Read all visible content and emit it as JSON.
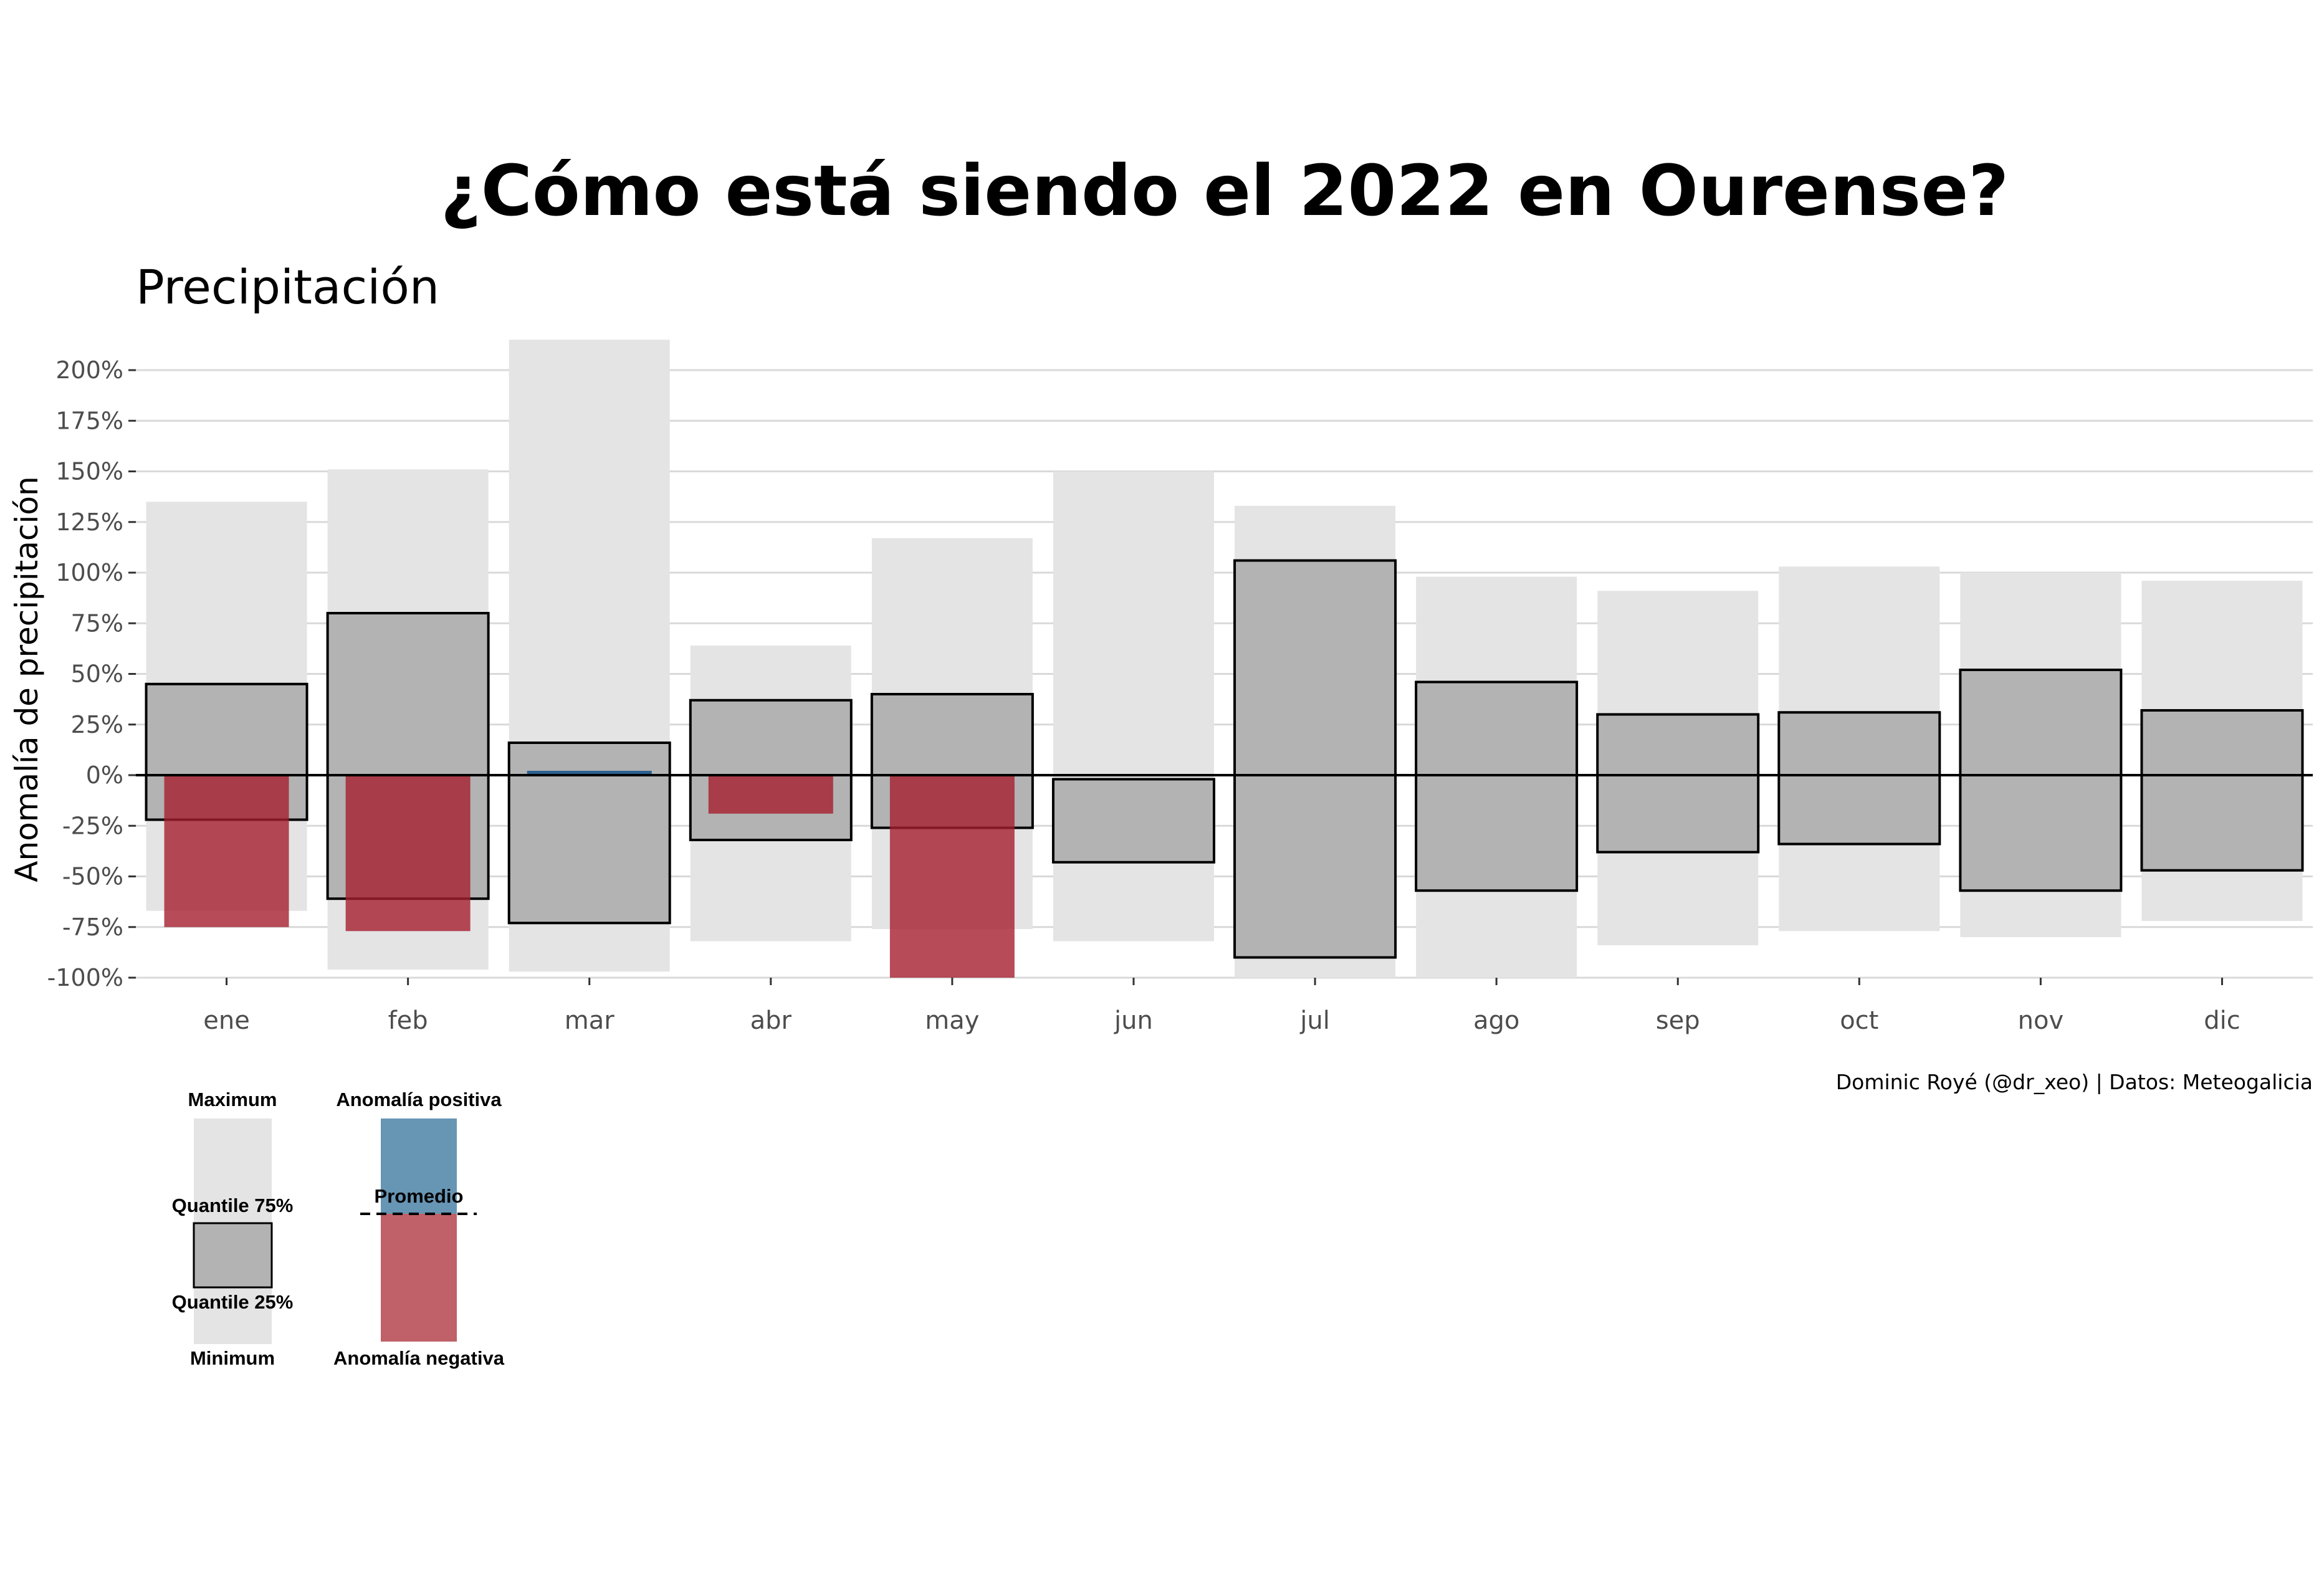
{
  "chart_data": {
    "type": "bar",
    "title": "¿Cómo está siendo el 2022 en Ourense?",
    "subtitle": "Precipitación",
    "ylabel": "Anomalía de precipitación",
    "caption": "Dominic Royé (@dr_xeo) | Datos: Meteogalicia",
    "ylim": [
      -100,
      215
    ],
    "yticks": [
      200,
      175,
      150,
      125,
      100,
      75,
      50,
      25,
      0,
      -25,
      -50,
      -75,
      -100
    ],
    "ytick_labels": [
      "200%",
      "175%",
      "150%",
      "125%",
      "100%",
      "75%",
      "50%",
      "25%",
      "0%",
      "-25%",
      "-50%",
      "-75%",
      "-100%"
    ],
    "categories": [
      "ene",
      "feb",
      "mar",
      "abr",
      "may",
      "jun",
      "jul",
      "ago",
      "sep",
      "oct",
      "nov",
      "dic"
    ],
    "min": [
      -67,
      -96,
      -97,
      -82,
      -76,
      -82,
      -100,
      -100,
      -84,
      -77,
      -80,
      -72
    ],
    "max": [
      135,
      151,
      215,
      64,
      117,
      150,
      133,
      98,
      91,
      103,
      100,
      96
    ],
    "q25": [
      -22,
      -61,
      -73,
      -32,
      -26,
      -43,
      -90,
      -57,
      -38,
      -34,
      -57,
      -47
    ],
    "q75": [
      45,
      80,
      16,
      37,
      40,
      -2,
      106,
      46,
      30,
      31,
      52,
      32
    ],
    "anomaly": [
      -75,
      -77,
      2,
      -19,
      -100,
      null,
      null,
      null,
      null,
      null,
      null,
      null
    ],
    "grid": true,
    "legend_position": "bottom-left"
  },
  "legend": {
    "maximum": "Maximum",
    "q75": "Quantile 75%",
    "q25": "Quantile 25%",
    "minimum": "Minimum",
    "positive": "Anomalía positiva",
    "average": "Promedio",
    "negative": "Anomalía negativa"
  },
  "colors": {
    "range_fill": "#e4e4e4",
    "iqr_fill": "#b3b3b3",
    "positive": "#2c6190",
    "negative": "#a51e2d",
    "positive_legend": "#6795b4",
    "negative_legend": "#c06068",
    "grid": "#d9d9d9"
  }
}
